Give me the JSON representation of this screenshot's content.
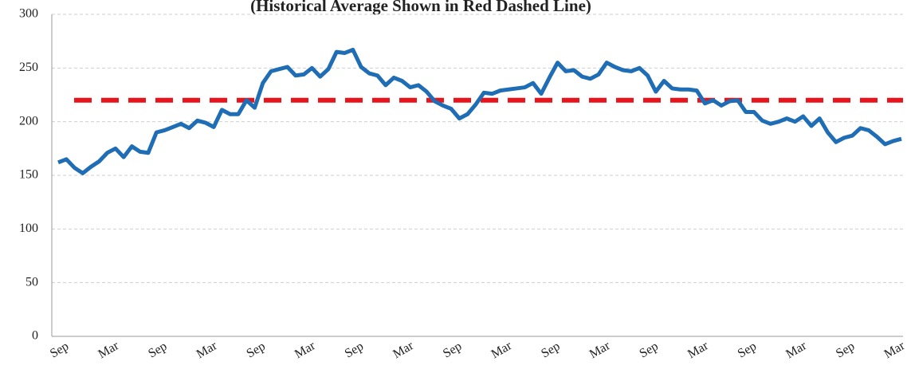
{
  "chart_data": {
    "type": "line",
    "subtitle": "(Historical Average Shown in Red Dashed Line)",
    "categories": [
      "Sep",
      null,
      null,
      null,
      null,
      null,
      "Mar",
      null,
      null,
      null,
      null,
      null,
      "Sep",
      null,
      null,
      null,
      null,
      null,
      "Mar",
      null,
      null,
      null,
      null,
      null,
      "Sep",
      null,
      null,
      null,
      null,
      null,
      "Mar",
      null,
      null,
      null,
      null,
      null,
      "Sep",
      null,
      null,
      null,
      null,
      null,
      "Mar",
      null,
      null,
      null,
      null,
      null,
      "Sep",
      null,
      null,
      null,
      null,
      null,
      "Mar",
      null,
      null,
      null,
      null,
      null,
      "Sep",
      null,
      null,
      null,
      null,
      null,
      "Mar",
      null,
      null,
      null,
      null,
      null,
      "Sep",
      null,
      null,
      null,
      null,
      null,
      "Mar",
      null,
      null,
      null,
      null,
      null,
      "Sep",
      null,
      null,
      null,
      null,
      null,
      "Mar",
      null,
      null,
      null,
      null,
      null,
      "Sep",
      null,
      null,
      null,
      null,
      null,
      "Mar",
      null
    ],
    "series": [
      {
        "color": "#1f6db4",
        "values": [
          162,
          165,
          157,
          152,
          158,
          163,
          171,
          175,
          167,
          177,
          172,
          171,
          190,
          192,
          195,
          198,
          194,
          201,
          199,
          195,
          211,
          207,
          207,
          220,
          213,
          236,
          247,
          249,
          251,
          243,
          244,
          250,
          242,
          249,
          265,
          264,
          267,
          251,
          245,
          243,
          234,
          241,
          238,
          232,
          234,
          228,
          219,
          215,
          212,
          203,
          207,
          216,
          227,
          226,
          229,
          230,
          231,
          232,
          236,
          226,
          241,
          255,
          247,
          248,
          242,
          240,
          244,
          255,
          251,
          248,
          247,
          250,
          243,
          228,
          238,
          231,
          230,
          230,
          229,
          217,
          220,
          215,
          219,
          220,
          209,
          209,
          201,
          198,
          200,
          203,
          200,
          205,
          196,
          203,
          190,
          181,
          185,
          187,
          194,
          192,
          186,
          179,
          182,
          184
        ]
      }
    ],
    "reference_line": {
      "value": 220,
      "color": "#e8141b"
    },
    "ylim": [
      0,
      300
    ],
    "yticks": [
      0,
      50,
      100,
      150,
      200,
      250,
      300
    ],
    "grid": true
  }
}
